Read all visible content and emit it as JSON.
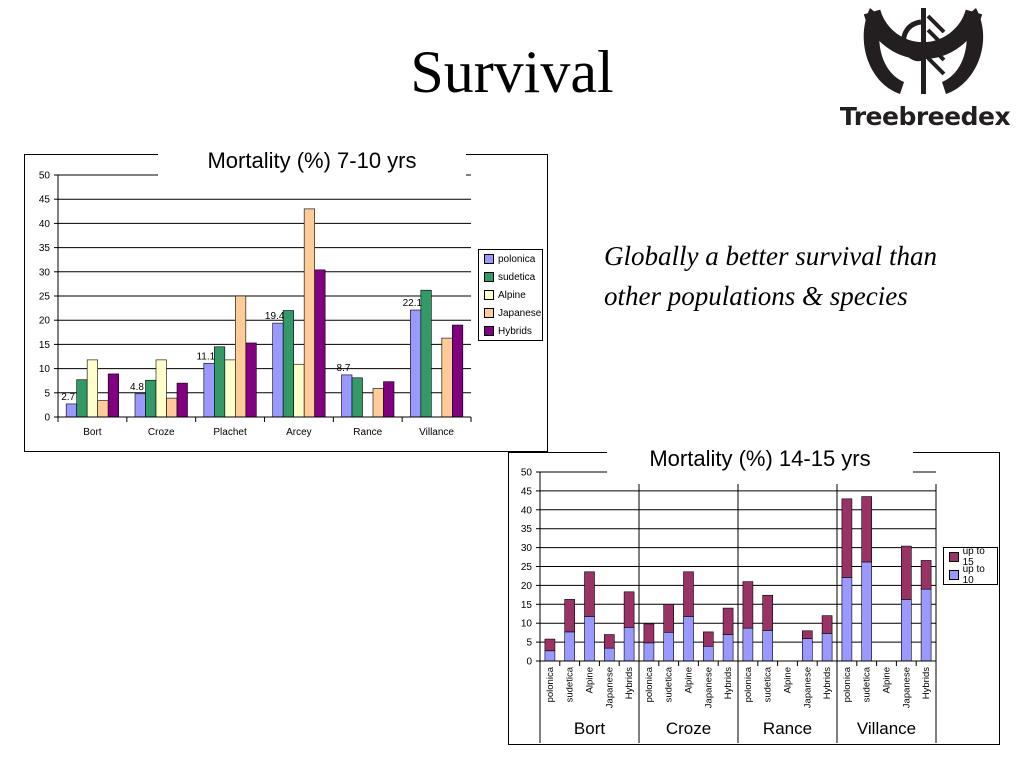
{
  "slide": {
    "title": "Survival",
    "logo_text": "Treebreedex",
    "statement": "Globally a better survival than other populations & species"
  },
  "colors": {
    "polonica": "#9999ff",
    "sudetica": "#339966",
    "Alpine": "#ffffcc",
    "Japanese": "#ffcc99",
    "Hybrids": "#800080",
    "up_to_15": "#993366",
    "up_to_10": "#9999ff"
  },
  "chart_data": [
    {
      "type": "bar",
      "title": "Mortality (%) 7-10 yrs",
      "categories": [
        "Bort",
        "Croze",
        "Plachet",
        "Arcey",
        "Rance",
        "Villance"
      ],
      "series": [
        {
          "name": "polonica",
          "values": [
            2.7,
            4.8,
            11.1,
            19.4,
            8.7,
            22.1
          ]
        },
        {
          "name": "sudetica",
          "values": [
            7.7,
            7.6,
            14.5,
            22.0,
            8.1,
            26.2
          ]
        },
        {
          "name": "Alpine",
          "values": [
            11.8,
            11.8,
            11.8,
            10.9,
            0,
            0
          ]
        },
        {
          "name": "Japanese",
          "values": [
            3.4,
            3.9,
            25.0,
            43.0,
            5.9,
            16.3
          ]
        },
        {
          "name": "Hybrids",
          "values": [
            8.9,
            7.0,
            15.3,
            30.4,
            7.3,
            19.0
          ]
        }
      ],
      "data_labels": [
        "2.7",
        "4.8",
        "11.1",
        "19.4",
        "8.7",
        "22.1"
      ],
      "ylim": [
        0,
        50
      ],
      "yticks": [
        "0",
        "5",
        "10",
        "15",
        "20",
        "25",
        "30",
        "35",
        "40",
        "45",
        "50"
      ],
      "legend": "right",
      "grid": true
    },
    {
      "type": "bar",
      "stacked": true,
      "title": "Mortality (%) 14-15 yrs",
      "groups": [
        "Bort",
        "Croze",
        "Rance",
        "Villance"
      ],
      "categories": [
        "polonica",
        "sudetica",
        "Alpine",
        "Japanese",
        "Hybrids"
      ],
      "series": [
        {
          "name": "up to 10",
          "values": [
            [
              2.7,
              7.7,
              11.8,
              3.4,
              8.9
            ],
            [
              4.8,
              7.6,
              11.8,
              3.9,
              7.0
            ],
            [
              8.7,
              8.1,
              0,
              5.9,
              7.3
            ],
            [
              22.1,
              26.2,
              0,
              16.3,
              19.0
            ]
          ]
        },
        {
          "name": "up to 15",
          "values": [
            [
              3.1,
              8.6,
              11.8,
              3.6,
              9.4
            ],
            [
              5.0,
              7.4,
              11.8,
              3.8,
              7.0
            ],
            [
              12.3,
              9.3,
              0,
              2.1,
              4.7
            ],
            [
              20.8,
              17.3,
              0,
              14.1,
              7.6
            ]
          ]
        }
      ],
      "ylim": [
        0,
        50
      ],
      "yticks": [
        "0",
        "5",
        "10",
        "15",
        "20",
        "25",
        "30",
        "35",
        "40",
        "45",
        "50"
      ],
      "legend": "right",
      "grid": true
    }
  ]
}
